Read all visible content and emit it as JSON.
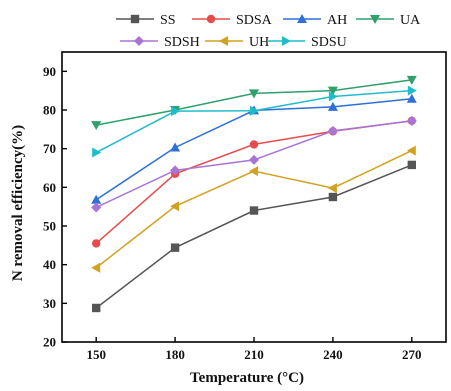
{
  "chart_data": {
    "type": "line",
    "title": "",
    "xlabel": "Temperature (°C)",
    "ylabel": "N removal efficiency(%)",
    "x": [
      150,
      180,
      210,
      240,
      270
    ],
    "xlim": [
      137,
      283
    ],
    "ylim": [
      20,
      95
    ],
    "yticks": [
      20,
      30,
      40,
      50,
      60,
      70,
      80,
      90
    ],
    "grid": false,
    "legend_placement": "top",
    "series": [
      {
        "name": "SS",
        "color": "#555555",
        "marker": "square",
        "values": [
          28.8,
          44.4,
          54.0,
          57.5,
          65.8
        ]
      },
      {
        "name": "SDSA",
        "color": "#e74c4c",
        "marker": "circle",
        "values": [
          45.5,
          63.5,
          71.1,
          74.5,
          77.2
        ]
      },
      {
        "name": "AH",
        "color": "#2f6fd6",
        "marker": "triangle-up",
        "values": [
          56.8,
          70.3,
          79.9,
          80.8,
          82.9
        ]
      },
      {
        "name": "UA",
        "color": "#2ea06b",
        "marker": "triangle-down",
        "values": [
          76.1,
          80.0,
          84.3,
          85.0,
          87.8
        ]
      },
      {
        "name": "SDSH",
        "color": "#a875d6",
        "marker": "diamond",
        "values": [
          54.8,
          64.4,
          67.1,
          74.6,
          77.2
        ]
      },
      {
        "name": "UH",
        "color": "#d1a21f",
        "marker": "triangle-left",
        "values": [
          39.2,
          55.1,
          64.2,
          59.8,
          69.5
        ]
      },
      {
        "name": "SDSU",
        "color": "#1fbccc",
        "marker": "triangle-right",
        "values": [
          69.0,
          79.7,
          79.8,
          83.5,
          85.0
        ]
      }
    ]
  }
}
